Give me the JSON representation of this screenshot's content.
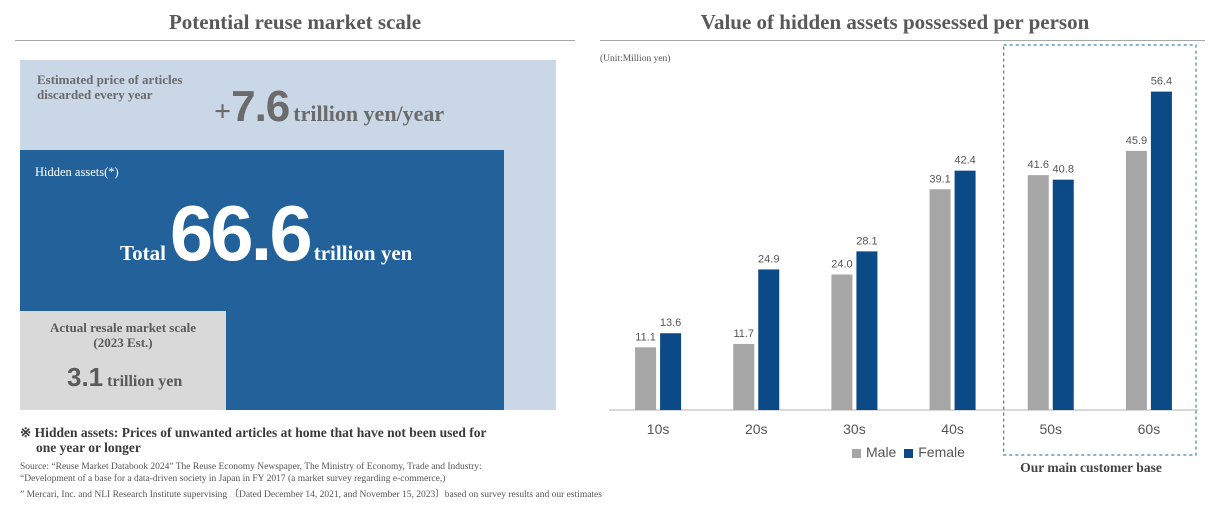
{
  "left": {
    "title": "Potential reuse market scale",
    "discard": {
      "label_line1": "Estimated price of articles",
      "label_line2": "discarded every year",
      "plus": "+",
      "value": "7.6",
      "unit": "trillion yen/year"
    },
    "hidden": {
      "label": "Hidden assets(*)",
      "total_word": "Total",
      "value": "66.6",
      "unit": "trillion yen"
    },
    "resale": {
      "label_line1": "Actual resale market scale",
      "label_line2": "(2023 Est.)",
      "value": "3.1",
      "unit": "trillion yen"
    },
    "note_line1": "※ Hidden assets: Prices of unwanted articles at home that have not been used for",
    "note_line2": "one year or longer",
    "source_line1": "Source: “Reuse Market Databook 2024”    The Reuse Economy Newspaper, The Ministry of Economy, Trade and Industry:",
    "source_line2": "“Development of a base for a data-driven society in Japan in FY 2017 (a market survey regarding e-commerce,)",
    "source_line3": "” Mercari, Inc. and NLI Research Institute supervising  〔Dated December 14, 2021, and November 15, 2023〕based on survey results and our estimates",
    "colors": {
      "light": "#c9d7e6",
      "dark": "#22619a",
      "gray": "#d9d9d9"
    }
  },
  "right": {
    "title": "Value of hidden assets possessed per person",
    "unit_note": "(Unit:Million yen)",
    "highlight_label": "Our main customer base"
  },
  "chart_data": {
    "type": "bar",
    "title": "Value of hidden assets possessed per person",
    "categories": [
      "10s",
      "20s",
      "30s",
      "40s",
      "50s",
      "60s"
    ],
    "series": [
      {
        "name": "Male",
        "color": "#a6a6a6",
        "values": [
          11.1,
          11.7,
          24.0,
          39.1,
          41.6,
          45.9
        ],
        "labels": [
          "11.1",
          "11.7",
          "24.0",
          "39.1",
          "41.6",
          "45.9"
        ]
      },
      {
        "name": "Female",
        "color": "#0b4a86",
        "values": [
          13.6,
          24.9,
          28.1,
          42.4,
          40.8,
          56.4
        ],
        "labels": [
          "13.6",
          "24.9",
          "28.1",
          "42.4",
          "40.8",
          "56.4"
        ]
      }
    ],
    "ylabel": "",
    "xlabel": "",
    "ylim": [
      0,
      62
    ],
    "grid": false,
    "legend_position": "bottom-center",
    "highlighted_categories": [
      "50s",
      "60s"
    ]
  }
}
